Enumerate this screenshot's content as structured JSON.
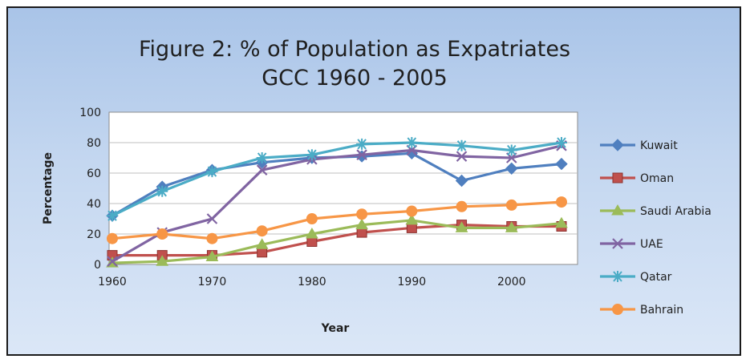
{
  "chart_data": {
    "type": "line",
    "title": [
      "Figure 2: % of Population as Expatriates",
      "GCC 1960 - 2005"
    ],
    "xlabel": "Year",
    "ylabel": "Percentage",
    "xlim": [
      1960,
      2005
    ],
    "ylim": [
      0,
      100
    ],
    "x_ticks": [
      1960,
      1970,
      1980,
      1990,
      2000
    ],
    "y_ticks": [
      0,
      20,
      40,
      60,
      80,
      100
    ],
    "grid": "horizontal",
    "legend_position": "right",
    "x": [
      1960,
      1965,
      1970,
      1975,
      1980,
      1985,
      1990,
      1995,
      2000,
      2005
    ],
    "series": [
      {
        "name": "Kuwait",
        "color": "#4f7fbf",
        "marker": "diamond",
        "values": [
          32,
          51,
          62,
          67,
          70,
          71,
          73,
          55,
          63,
          66
        ]
      },
      {
        "name": "Oman",
        "color": "#c0504d",
        "marker": "square",
        "values": [
          6,
          6,
          6,
          8,
          15,
          21,
          24,
          26,
          25,
          25
        ]
      },
      {
        "name": "Saudi Arabia",
        "color": "#9bbb59",
        "marker": "triangle",
        "values": [
          1,
          2,
          5,
          13,
          20,
          26,
          29,
          24,
          24,
          27
        ]
      },
      {
        "name": "UAE",
        "color": "#8064a2",
        "marker": "x",
        "values": [
          2,
          21,
          30,
          62,
          69,
          72,
          75,
          71,
          70,
          78
        ]
      },
      {
        "name": "Qatar",
        "color": "#4bacc6",
        "marker": "asterisk",
        "values": [
          32,
          48,
          61,
          70,
          72,
          79,
          80,
          78,
          75,
          80
        ]
      },
      {
        "name": "Bahrain",
        "color": "#f79646",
        "marker": "circle",
        "values": [
          17,
          20,
          17,
          22,
          30,
          33,
          35,
          38,
          39,
          41
        ]
      }
    ]
  }
}
